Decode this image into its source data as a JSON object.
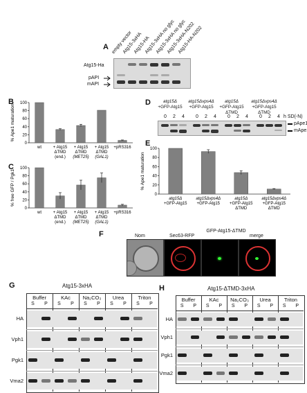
{
  "panels": {
    "A": {
      "letter": "A",
      "lanes": [
        "empty vector",
        "Atg15-3xHA",
        "Atg15-HA",
        "Atg15-3xHA no glyc",
        "Atg15-3xHA no glyc",
        "Atg15-3xHA-N202",
        "Atg15-HA-N202"
      ],
      "row_labels": [
        "Atg15-Ha",
        "pAPI",
        "mAPI"
      ]
    },
    "B": {
      "letter": "B",
      "ylabel": "% Ape1 maturation",
      "yticks": [
        "0",
        "20",
        "40",
        "60",
        "80",
        "100"
      ],
      "categories": [
        "wt",
        "+ Atg15 ΔTMD (end.)",
        "+ Atg15 ΔTMD (MET25)",
        "+ Atg15 ΔTMD (GAL1)",
        "+pRS316"
      ]
    },
    "C": {
      "letter": "C",
      "ylabel": "% free GFP / Pgk1",
      "yticks": [
        "0",
        "20",
        "40",
        "60",
        "80",
        "100"
      ],
      "categories": [
        "wt",
        "+ Atg15 ΔTMD (end.)",
        "+ Atg15 ΔTMD (MET25)",
        "+ Atg15 ΔTMD (GAL1)",
        "+pRS316"
      ]
    },
    "D": {
      "letter": "D",
      "groups": [
        "atg15Δ +GFP-Atg15",
        "atg15Δvps4Δ +GFP-Atg15",
        "atg15Δ +GFP-Atg15 ΔTMD",
        "atg15Δvps4Δ +GFP-Atg15 ΔTMD"
      ],
      "timepoints": [
        "0",
        "2",
        "4"
      ],
      "time_label": "h SD(-N)",
      "row_labels": [
        "pApe1",
        "mApe1"
      ]
    },
    "E": {
      "letter": "E",
      "ylabel": "% Ape1 maturation",
      "yticks": [
        "0",
        "20",
        "40",
        "60",
        "80",
        "100"
      ],
      "categories": [
        "atg15Δ +GFP-Atg15",
        "atg15Δvps4Δ +GFP-Atg15",
        "atg15Δ +GFP-Atg15 ΔTMD",
        "atg15Δvps4Δ +GFP-Atg15 ΔTMD"
      ]
    },
    "F": {
      "letter": "F",
      "titles": [
        "Nom",
        "Sec63-RFP",
        "GFP-Atg15-ΔTMD",
        "merge"
      ]
    },
    "G": {
      "letter": "G",
      "title": "Atg15-3xHA",
      "conditions": [
        "Buffer",
        "KAc",
        "Na₂CO₃",
        "Urea",
        "Triton"
      ],
      "sp": [
        "S",
        "P"
      ],
      "rows": [
        "HA",
        "Vph1",
        "Pgk1",
        "Vma2"
      ]
    },
    "H": {
      "letter": "H",
      "title": "Atg15-ΔTMD-3xHA",
      "conditions": [
        "Buffer",
        "KAc",
        "Na₂CO₃",
        "Urea",
        "Triton"
      ],
      "sp": [
        "S",
        "P"
      ],
      "rows": [
        "HA",
        "Vph1",
        "Pgk1",
        "Vma2"
      ]
    }
  },
  "chart_data": [
    {
      "type": "bar",
      "panel": "B",
      "categories": [
        "wt",
        "+ Atg15 ΔTMD (end.)",
        "+ Atg15 ΔTMD (MET25)",
        "+ Atg15 ΔTMD (GAL1)",
        "+pRS316"
      ],
      "values": [
        100,
        33,
        43,
        81,
        6
      ],
      "errors": [
        0,
        2,
        3,
        0,
        1
      ],
      "ylabel": "% Ape1 maturation",
      "ylim": [
        0,
        100
      ]
    },
    {
      "type": "bar",
      "panel": "C",
      "categories": [
        "wt",
        "+ Atg15 ΔTMD (end.)",
        "+ Atg15 ΔTMD (MET25)",
        "+ Atg15 ΔTMD (GAL1)",
        "+pRS316"
      ],
      "values": [
        100,
        30,
        57,
        75,
        7
      ],
      "errors": [
        0,
        8,
        12,
        12,
        2
      ],
      "ylabel": "% free GFP / Pgk1",
      "ylim": [
        0,
        100
      ]
    },
    {
      "type": "bar",
      "panel": "E",
      "categories": [
        "atg15Δ +GFP-Atg15",
        "atg15Δvps4Δ +GFP-Atg15",
        "atg15Δ +GFP-Atg15 ΔTMD",
        "atg15Δvps4Δ +GFP-Atg15 ΔTMD"
      ],
      "values": [
        100,
        93,
        47,
        11
      ],
      "errors": [
        0,
        4,
        4,
        1
      ],
      "ylabel": "% Ape1 maturation",
      "ylim": [
        0,
        100
      ]
    }
  ]
}
